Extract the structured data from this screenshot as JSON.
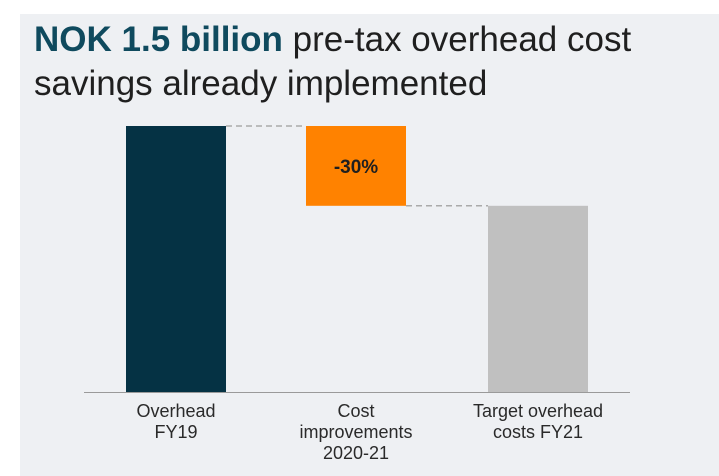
{
  "title": {
    "highlight": "NOK 1.5 billion",
    "rest": " pre-tax overhead cost savings already implemented"
  },
  "chart_data": {
    "type": "bar",
    "subtype": "waterfall",
    "title": "NOK 1.5 billion pre-tax overhead cost savings already implemented",
    "categories": [
      "Overhead FY19",
      "Cost improvements 2020-21",
      "Target overhead costs FY21"
    ],
    "category_lines": [
      [
        "Overhead",
        "FY19"
      ],
      [
        "Cost",
        "improvements",
        "2020-21"
      ],
      [
        "Target overhead",
        "costs FY21"
      ]
    ],
    "values": [
      100,
      -30,
      70
    ],
    "kinds": [
      "total",
      "decrease",
      "total"
    ],
    "data_labels": [
      "",
      "-30%",
      ""
    ],
    "colors": [
      "#053244",
      "#ff8200",
      "#c0c0c0"
    ],
    "ylim": [
      0,
      100
    ],
    "connector_color": "#aaaaaa",
    "grid": false,
    "xlabel": "",
    "ylabel": ""
  }
}
